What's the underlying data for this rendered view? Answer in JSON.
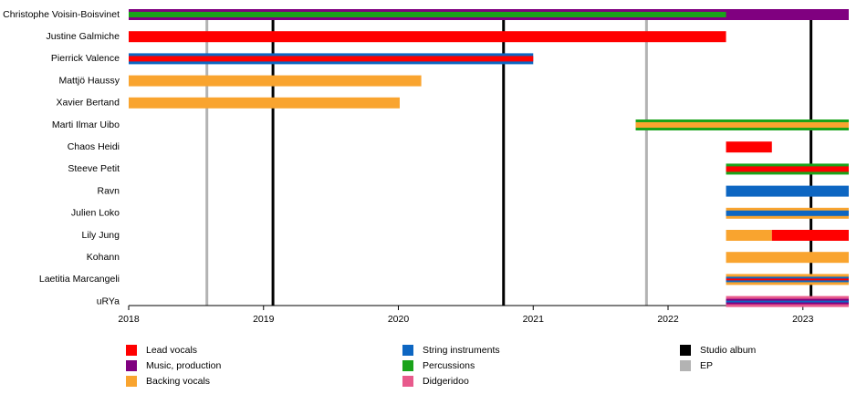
{
  "chart_data": {
    "type": "timeline",
    "xlim": [
      2018,
      2023.34
    ],
    "xticks": [
      2018,
      2019,
      2020,
      2021,
      2022,
      2023
    ],
    "roles": [
      {
        "name": "Lead vocals",
        "color": "#ff0000"
      },
      {
        "name": "Music, production",
        "color": "#800080"
      },
      {
        "name": "Backing vocals",
        "color": "#f9a42f"
      },
      {
        "name": "String instruments",
        "color": "#0d66c2"
      },
      {
        "name": "Percussions",
        "color": "#1aa31a"
      },
      {
        "name": "Didgeridoo",
        "color": "#e85a8c"
      }
    ],
    "events": [
      {
        "name": "Studio album",
        "color": "#000000",
        "dates": [
          2019.07,
          2020.78,
          2023.06
        ]
      },
      {
        "name": "EP",
        "color": "#b3b3b3",
        "dates": [
          2018.58,
          2021.84
        ]
      }
    ],
    "members": [
      {
        "name": "Christophe Voisin-Boisvinet",
        "periods": [
          {
            "role": "Music, production",
            "start": 2018,
            "end": 2023.34
          },
          {
            "role": "Percussions",
            "start": 2018,
            "end": 2022.43
          }
        ]
      },
      {
        "name": "Justine Galmiche",
        "periods": [
          {
            "role": "Lead vocals",
            "start": 2018,
            "end": 2022.43
          }
        ]
      },
      {
        "name": "Pierrick Valence",
        "periods": [
          {
            "role": "String instruments",
            "start": 2018,
            "end": 2021
          },
          {
            "role": "Lead vocals",
            "start": 2018,
            "end": 2021
          }
        ]
      },
      {
        "name": "Mattjö Haussy",
        "periods": [
          {
            "role": "Backing vocals",
            "start": 2018,
            "end": 2020.17
          }
        ]
      },
      {
        "name": "Xavier Bertand",
        "periods": [
          {
            "role": "Backing vocals",
            "start": 2018,
            "end": 2020.01
          }
        ]
      },
      {
        "name": "Marti Ilmar Uibo",
        "periods": [
          {
            "role": "Percussions",
            "start": 2021.76,
            "end": 2023.34
          },
          {
            "role": "Backing vocals",
            "start": 2021.76,
            "end": 2023.34
          }
        ]
      },
      {
        "name": "Chaos Heidi",
        "periods": [
          {
            "role": "Lead vocals",
            "start": 2022.43,
            "end": 2022.77
          }
        ]
      },
      {
        "name": "Steeve Petit",
        "periods": [
          {
            "role": "Percussions",
            "start": 2022.43,
            "end": 2023.34
          },
          {
            "role": "Lead vocals",
            "start": 2022.43,
            "end": 2023.34
          }
        ]
      },
      {
        "name": "Ravn",
        "periods": [
          {
            "role": "String instruments",
            "start": 2022.43,
            "end": 2023.34
          }
        ]
      },
      {
        "name": "Julien Loko",
        "periods": [
          {
            "role": "Backing vocals",
            "start": 2022.43,
            "end": 2023.34
          },
          {
            "role": "String instruments",
            "start": 2022.43,
            "end": 2023.34
          }
        ]
      },
      {
        "name": "Lily Jung",
        "periods": [
          {
            "role": "Backing vocals",
            "start": 2022.43,
            "end": 2022.77
          },
          {
            "role": "Lead vocals",
            "start": 2022.77,
            "end": 2023.34
          }
        ]
      },
      {
        "name": "Kohann",
        "periods": [
          {
            "role": "Backing vocals",
            "start": 2022.43,
            "end": 2023.34
          }
        ]
      },
      {
        "name": "Laetitia Marcangeli",
        "periods": [
          {
            "role": "Backing vocals",
            "start": 2022.43,
            "end": 2023.34
          },
          {
            "role": "String instruments",
            "start": 2022.43,
            "end": 2023.34
          },
          {
            "role": "Lead vocals",
            "start": 2022.43,
            "end": 2023.34
          }
        ]
      },
      {
        "name": "uRYa",
        "periods": [
          {
            "role": "Didgeridoo",
            "start": 2022.43,
            "end": 2023.34
          },
          {
            "role": "Music, production",
            "start": 2022.43,
            "end": 2023.34
          },
          {
            "role": "String instruments",
            "start": 2022.43,
            "end": 2023.34
          }
        ]
      }
    ]
  }
}
